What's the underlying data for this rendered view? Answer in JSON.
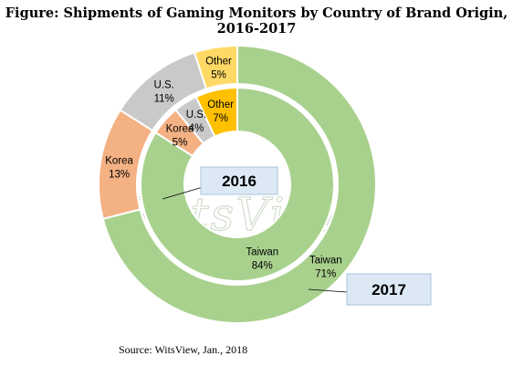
{
  "title": "Figure: Shipments of Gaming Monitors by Country of Brand Origin, 2016-2017",
  "source": "Source: WitsView, Jan., 2018",
  "watermark": "WitsView",
  "colors": {
    "Taiwan": "#a9d18e",
    "Korea": "#f4b183",
    "U.S.": "#c9c9c9",
    "Other": "#ffd966",
    "other_inner": "#ffc000"
  },
  "chart_data": {
    "type": "pie",
    "subtype": "nested-donut",
    "series": [
      {
        "name": "2016",
        "ring": "inner",
        "labels": [
          "Taiwan",
          "Korea",
          "U.S.",
          "Other"
        ],
        "values": [
          84,
          5,
          4,
          7
        ],
        "display": [
          "84%",
          "5%",
          "4%",
          "7%"
        ]
      },
      {
        "name": "2017",
        "ring": "outer",
        "labels": [
          "Taiwan",
          "Korea",
          "U.S.",
          "Other"
        ],
        "values": [
          71,
          13,
          11,
          5
        ],
        "display": [
          "71%",
          "13%",
          "11%",
          "5%"
        ]
      }
    ]
  }
}
